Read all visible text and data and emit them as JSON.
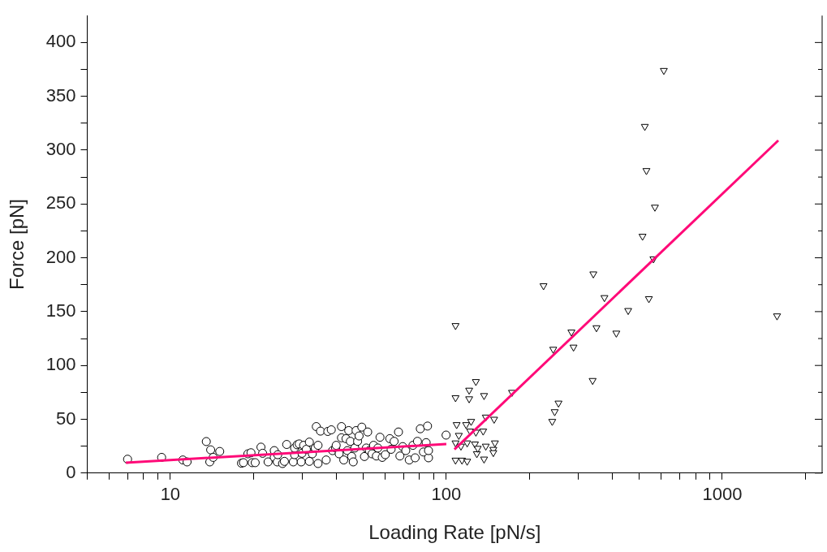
{
  "chart_data": {
    "type": "scatter",
    "xlabel": "Loading Rate [pN/s]",
    "ylabel": "Force [pN]",
    "log": "x",
    "grid": false,
    "legend": false,
    "xlim": [
      5,
      2300
    ],
    "ylim": [
      0,
      425
    ],
    "xticks": [
      {
        "value": 5,
        "label": null
      },
      {
        "value": 6,
        "label": null
      },
      {
        "value": 7,
        "label": null
      },
      {
        "value": 8,
        "label": null
      },
      {
        "value": 9,
        "label": null
      },
      10,
      {
        "value": 20,
        "label": null
      },
      {
        "value": 30,
        "label": null
      },
      {
        "value": 40,
        "label": null
      },
      {
        "value": 50,
        "label": null
      },
      {
        "value": 60,
        "label": null
      },
      {
        "value": 70,
        "label": null
      },
      {
        "value": 80,
        "label": null
      },
      {
        "value": 90,
        "label": null
      },
      100,
      {
        "value": 200,
        "label": null
      },
      {
        "value": 300,
        "label": null
      },
      {
        "value": 400,
        "label": null
      },
      {
        "value": 500,
        "label": null
      },
      {
        "value": 600,
        "label": null
      },
      {
        "value": 700,
        "label": null
      },
      {
        "value": 800,
        "label": null
      },
      {
        "value": 900,
        "label": null
      },
      1000,
      {
        "value": 2000,
        "label": null
      }
    ],
    "yticks": [
      0,
      {
        "value": 25,
        "label": null
      },
      50,
      {
        "value": 75,
        "label": null
      },
      100,
      {
        "value": 125,
        "label": null
      },
      150,
      {
        "value": 175,
        "label": null
      },
      200,
      {
        "value": 225,
        "label": null
      },
      250,
      {
        "value": 275,
        "label": null
      },
      300,
      {
        "value": 325,
        "label": null
      },
      350,
      {
        "value": 375,
        "label": null
      },
      400
    ],
    "series": [
      {
        "type": "scatter",
        "marker": "circle",
        "color": "#000000",
        "x": [
          7.0,
          9.3,
          11.1,
          11.5,
          13.5,
          14.0,
          13.9,
          14.3,
          15.1,
          18.1,
          18.4,
          19.1,
          19.6,
          19.8,
          20.3,
          21.3,
          21.6,
          22.6,
          23.8,
          23.8,
          24.4,
          24.5,
          25.5,
          25.9,
          26.4,
          27.9,
          28.2,
          28.2,
          28.8,
          29.3,
          29.8,
          30.0,
          30.4,
          31.1,
          31.9,
          31.9,
          32.7,
          33.5,
          34.3,
          34.3,
          33.8,
          35.0,
          36.7,
          37.2,
          38.3,
          38.7,
          39.7,
          39.9,
          40.9,
          41.7,
          41.7,
          42.5,
          43.3,
          43.8,
          44.3,
          44.9,
          45.4,
          46.0,
          46.6,
          47.1,
          47.7,
          48.3,
          49.4,
          50.5,
          51.3,
          51.9,
          52.6,
          53.8,
          54.5,
          55.8,
          56.5,
          57.5,
          58.6,
          60.1,
          62.4,
          63.1,
          64.7,
          67.1,
          67.9,
          69.5,
          71.3,
          73.4,
          75.7,
          77.1,
          78.6,
          80.5,
          82.6,
          84.5,
          85.5,
          86.2,
          86.2,
          99.8
        ],
        "values": [
          12.9,
          14.6,
          12.2,
          10.4,
          29.3,
          21.6,
          10.4,
          14.6,
          20.1,
          9.2,
          9.7,
          17.9,
          18.9,
          9.7,
          9.7,
          24.1,
          18.4,
          10.4,
          20.9,
          14.6,
          10.4,
          17.1,
          8.9,
          10.9,
          26.6,
          10.4,
          17.1,
          23.3,
          26.3,
          27.1,
          10.4,
          18.4,
          25.8,
          22.1,
          28.8,
          10.9,
          17.9,
          23.3,
          8.9,
          25.8,
          43.2,
          39.0,
          12.2,
          38.7,
          40.2,
          20.9,
          23.3,
          25.8,
          17.9,
          43.2,
          32.8,
          12.2,
          32.0,
          20.9,
          39.5,
          29.5,
          15.4,
          10.4,
          23.3,
          39.5,
          29.5,
          34.5,
          42.7,
          15.4,
          23.3,
          38.2,
          20.9,
          17.9,
          25.8,
          15.9,
          23.3,
          33.3,
          14.6,
          17.1,
          32.0,
          22.1,
          29.5,
          38.2,
          15.9,
          24.6,
          20.9,
          12.2,
          25.8,
          14.2,
          29.5,
          41.2,
          19.6,
          28.3,
          43.7,
          14.2,
          20.9,
          35.3
        ]
      },
      {
        "type": "scatter",
        "marker": "triangle",
        "color": "#000000",
        "x": [
          108,
          614,
          524,
          531,
          570,
          514,
          563,
          341,
          225,
          374,
          542,
          456,
          1579,
          350,
          413,
          284,
          244,
          289,
          339,
          173,
          255,
          247,
          242,
          128,
          121,
          108,
          121,
          137,
          109,
          118,
          123,
          139,
          149,
          111,
          122,
          128,
          136,
          108,
          113,
          119,
          127,
          139,
          150,
          148,
          129,
          130,
          108,
          114,
          119,
          137,
          148
        ],
        "values": [
          137,
          374,
          322,
          281,
          247,
          220,
          199,
          185,
          174,
          163,
          162,
          151,
          146,
          135,
          130,
          131,
          115,
          117,
          86,
          75,
          65,
          57,
          48,
          85,
          77,
          70,
          69,
          72,
          45,
          45,
          48,
          52,
          50,
          35,
          39,
          38,
          39,
          28,
          25,
          28,
          27,
          25,
          28,
          22,
          18,
          23,
          12,
          12,
          11,
          13,
          19
        ]
      },
      {
        "type": "line",
        "marker": "none",
        "color": "#ff0a78",
        "x": [
          6.9,
          100
        ],
        "values": [
          9.7,
          27
        ]
      },
      {
        "type": "line",
        "marker": "none",
        "color": "#ff0a78",
        "x": [
          107,
          1596
        ],
        "values": [
          22,
          309
        ]
      }
    ]
  }
}
